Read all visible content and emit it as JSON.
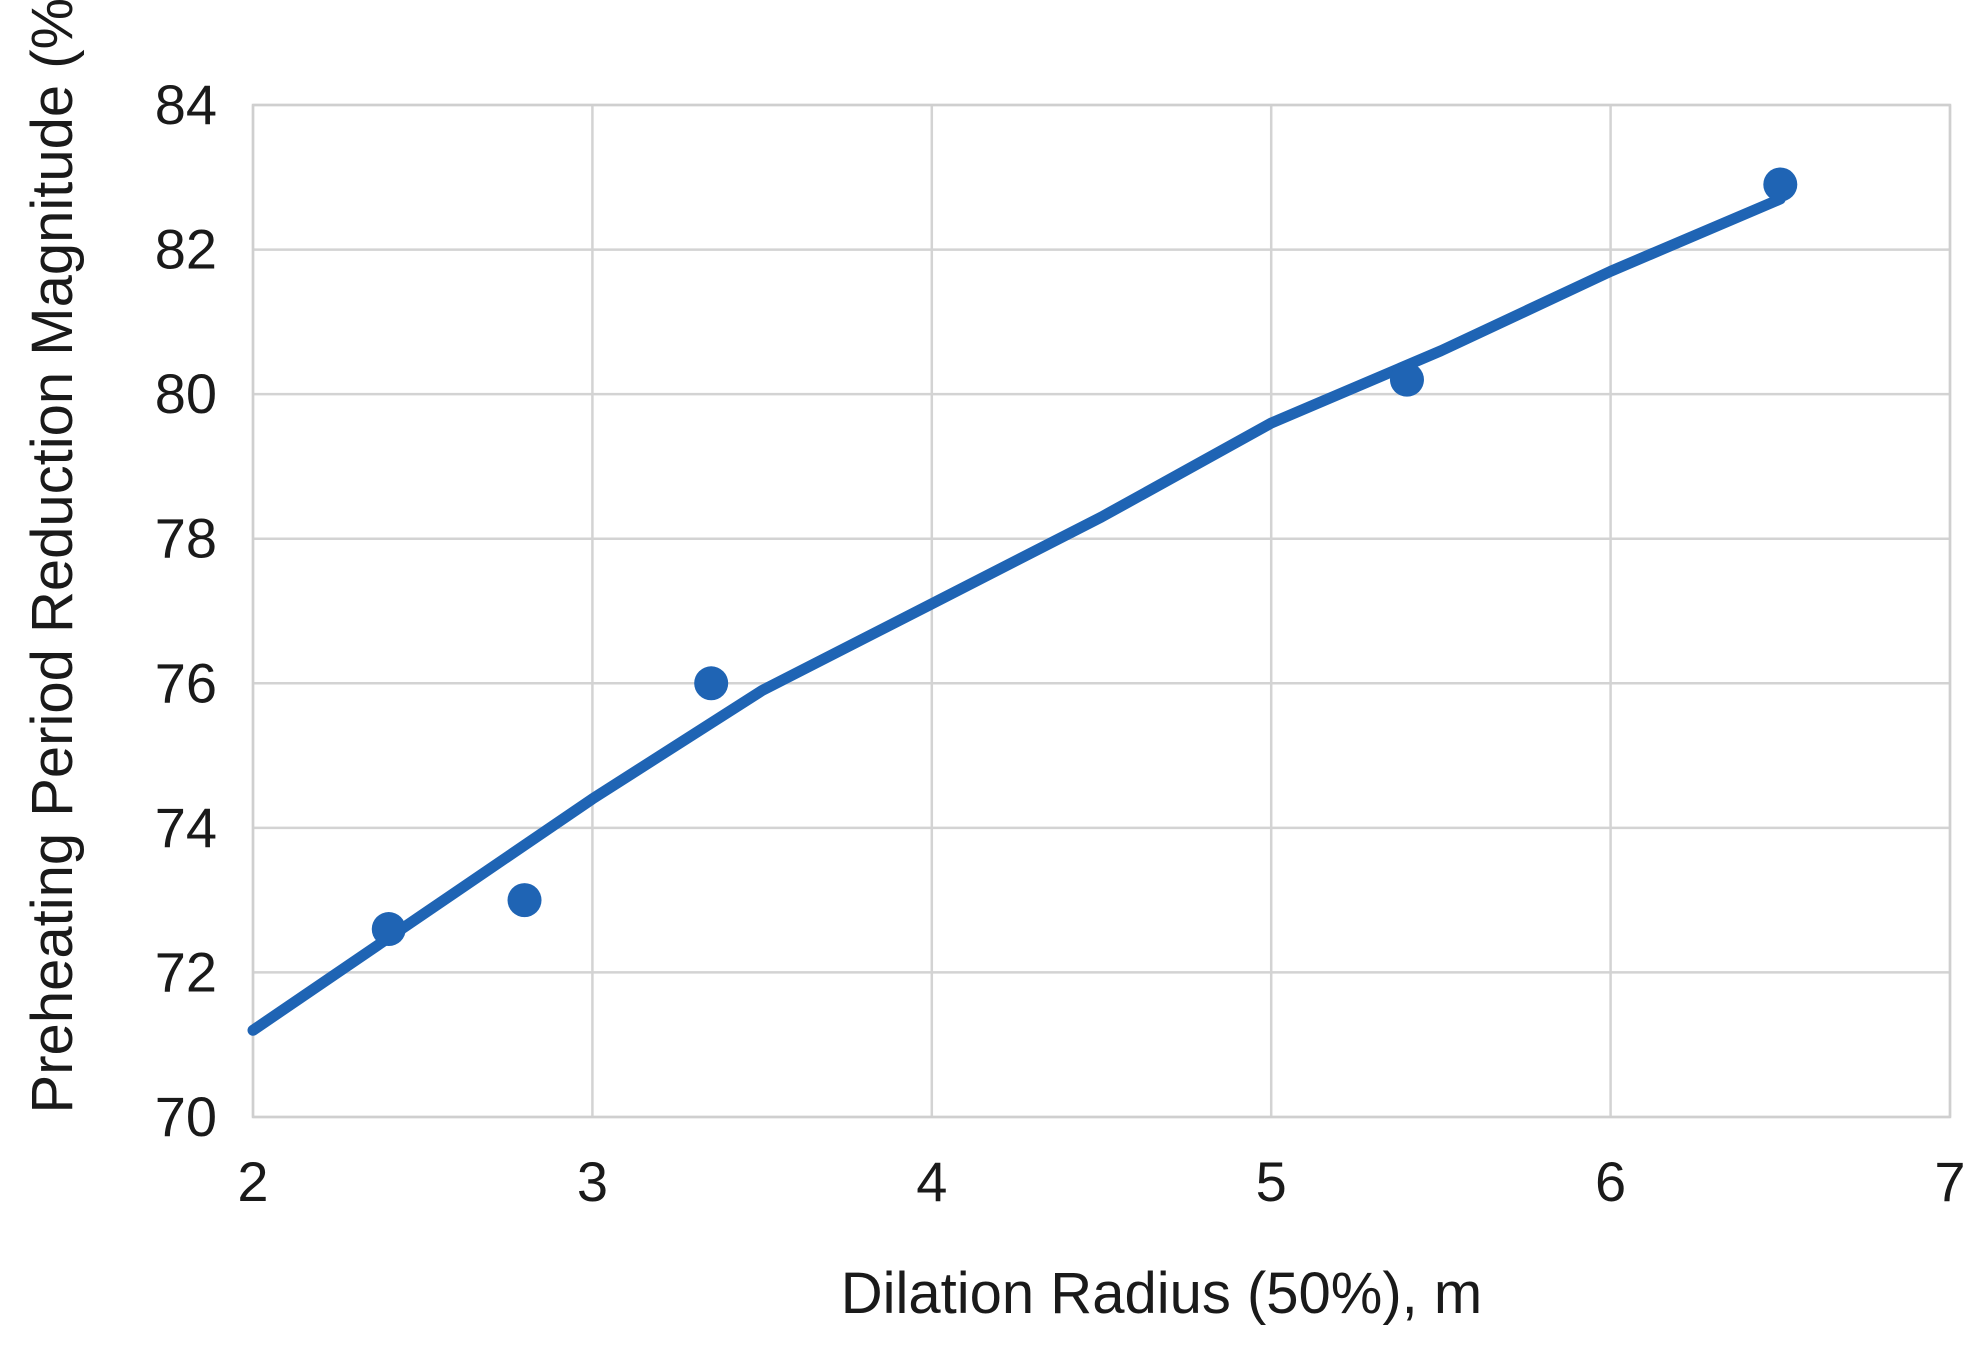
{
  "chart_data": {
    "type": "scatter",
    "title": "",
    "xlabel": "Dilation Radius (50%), m",
    "ylabel": "Preheating Period Reduction Magnitude (%)",
    "xlim": [
      2,
      7
    ],
    "ylim": [
      70,
      84
    ],
    "x_ticks": [
      2,
      3,
      4,
      5,
      6,
      7
    ],
    "y_ticks": [
      70,
      72,
      74,
      76,
      78,
      80,
      82,
      84
    ],
    "grid": true,
    "legend": "none",
    "colors": {
      "series": "#1f64b4",
      "grid": "#d3d3d3",
      "text": "#1a1a1a"
    },
    "series": [
      {
        "kind": "points",
        "x": [
          2.4,
          2.8,
          3.35,
          5.4,
          6.5
        ],
        "y": [
          72.6,
          73.0,
          76.0,
          80.2,
          82.9
        ]
      },
      {
        "kind": "trend-line",
        "x": [
          2.0,
          2.5,
          3.0,
          3.5,
          4.0,
          4.5,
          5.0,
          5.5,
          6.0,
          6.5
        ],
        "y": [
          71.2,
          72.8,
          74.4,
          75.9,
          77.1,
          78.3,
          79.6,
          80.6,
          81.7,
          82.7
        ]
      }
    ]
  }
}
